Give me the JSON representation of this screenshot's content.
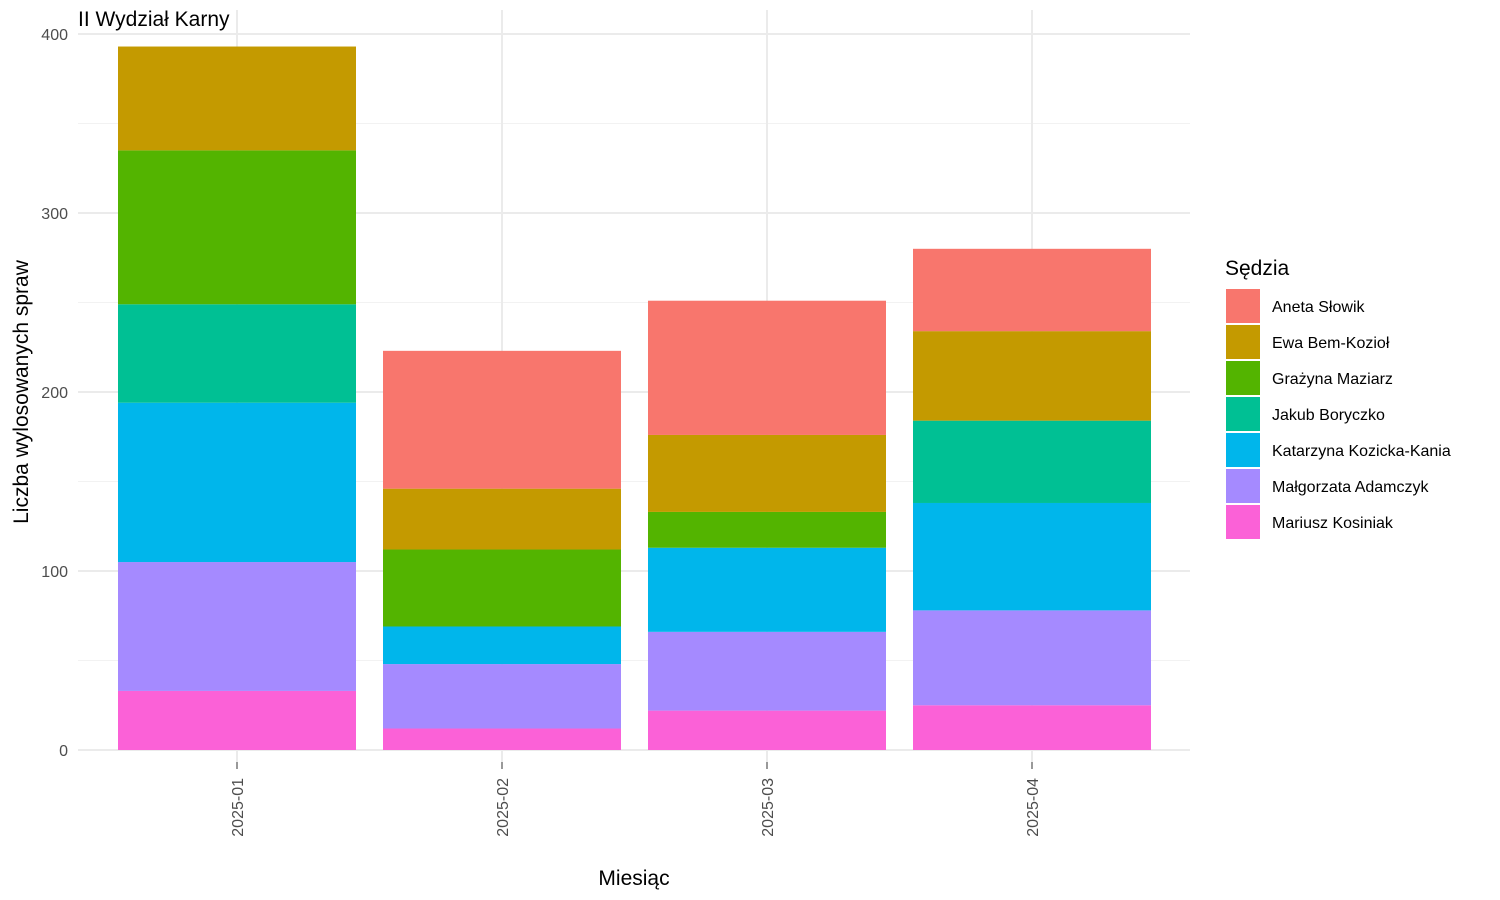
{
  "chart_data": {
    "type": "bar",
    "stacked": true,
    "title": "II Wydział Karny",
    "xlabel": "Miesiąc",
    "ylabel": "Liczba wylosowanych spraw",
    "ylim": [
      0,
      400
    ],
    "yticks": [
      0,
      100,
      200,
      300,
      400
    ],
    "grid": true,
    "legend": {
      "title": "Sędzia",
      "position": "right"
    },
    "categories": [
      "2025-01",
      "2025-02",
      "2025-03",
      "2025-04"
    ],
    "series": [
      {
        "name": "Mariusz Kosiniak",
        "color": "#FB61D7",
        "values": [
          33,
          12,
          22,
          25
        ]
      },
      {
        "name": "Małgorzata Adamczyk",
        "color": "#A58AFF",
        "values": [
          72,
          36,
          44,
          53
        ]
      },
      {
        "name": "Katarzyna Kozicka-Kania",
        "color": "#00B6EB",
        "values": [
          89,
          21,
          47,
          60
        ]
      },
      {
        "name": "Jakub Boryczko",
        "color": "#00C094",
        "values": [
          55,
          0,
          0,
          46
        ]
      },
      {
        "name": "Grażyna Maziarz",
        "color": "#53B400",
        "values": [
          86,
          43,
          20,
          0
        ]
      },
      {
        "name": "Ewa Bem-Kozioł",
        "color": "#C49A00",
        "values": [
          58,
          34,
          43,
          50
        ]
      },
      {
        "name": "Aneta Słowik",
        "color": "#F8766D",
        "values": [
          0,
          77,
          75,
          46
        ]
      }
    ],
    "legend_order": [
      "Aneta Słowik",
      "Ewa Bem-Kozioł",
      "Grażyna Maziarz",
      "Jakub Boryczko",
      "Katarzyna Kozicka-Kania",
      "Małgorzata Adamczyk",
      "Mariusz Kosiniak"
    ]
  }
}
